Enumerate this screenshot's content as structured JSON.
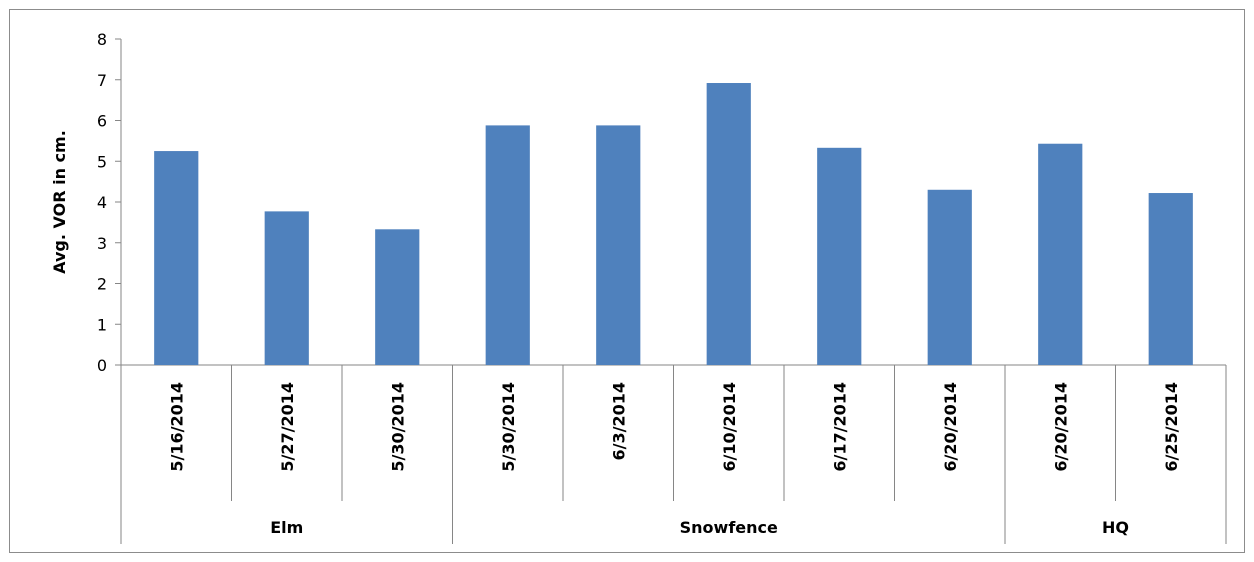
{
  "chart_data": {
    "type": "bar",
    "ylabel": "Avg. VOR in cm.",
    "xlabel": "",
    "title": "",
    "ylim": [
      0,
      8
    ],
    "yticks": [
      0,
      1,
      2,
      3,
      4,
      5,
      6,
      7,
      8
    ],
    "grid": false,
    "legend": "none",
    "bar_color": "#4f81bd",
    "categories": [
      "5/16/2014",
      "5/27/2014",
      "5/30/2014",
      "5/30/2014",
      "6/3/2014",
      "6/10/2014",
      "6/17/2014",
      "6/20/2014",
      "6/20/2014",
      "6/25/2014"
    ],
    "values": [
      5.25,
      3.77,
      3.33,
      5.88,
      5.88,
      6.92,
      5.33,
      4.3,
      5.43,
      4.22
    ],
    "groups": [
      {
        "name": "Elm",
        "count": 3
      },
      {
        "name": "Snowfence",
        "count": 5
      },
      {
        "name": "HQ",
        "count": 2
      }
    ]
  }
}
